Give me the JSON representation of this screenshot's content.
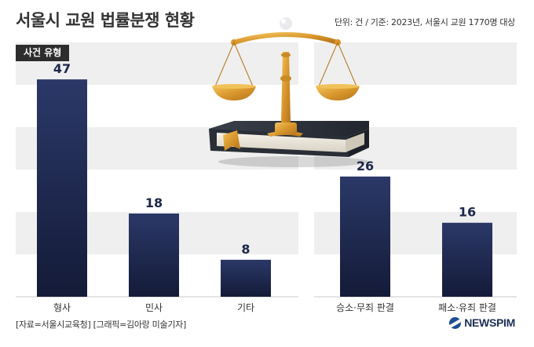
{
  "header": {
    "title": "서울시 교원 법률분쟁 현황",
    "unit_note": "단위: 건 / 기준: 2023년, 서울시 교원 1770명 대상"
  },
  "badge": {
    "label": "사건 유형"
  },
  "footer": {
    "source": "[자료=서울시교육청] [그래픽=김아랑 미술기자]",
    "logo_text": "NEWSPIM"
  },
  "colors": {
    "bar_top": "#2b3868",
    "bar_bottom": "#141b38",
    "band": "#efefef",
    "value_label": "#1d2749",
    "logo_blue": "#1d4f91"
  },
  "illustration": {
    "icon": "scales-of-justice-on-book-icon"
  },
  "chart_data": [
    {
      "type": "bar",
      "title": "사건 유형",
      "categories": [
        "형사",
        "민사",
        "기타"
      ],
      "values": [
        47,
        18,
        8
      ],
      "ylim": [
        0,
        55
      ],
      "grid": false,
      "data_labels": true
    },
    {
      "type": "bar",
      "categories": [
        "승소·무죄 판결",
        "패소·유죄 판결"
      ],
      "values": [
        26,
        16
      ],
      "ylim": [
        0,
        55
      ],
      "grid": false,
      "data_labels": true
    }
  ]
}
